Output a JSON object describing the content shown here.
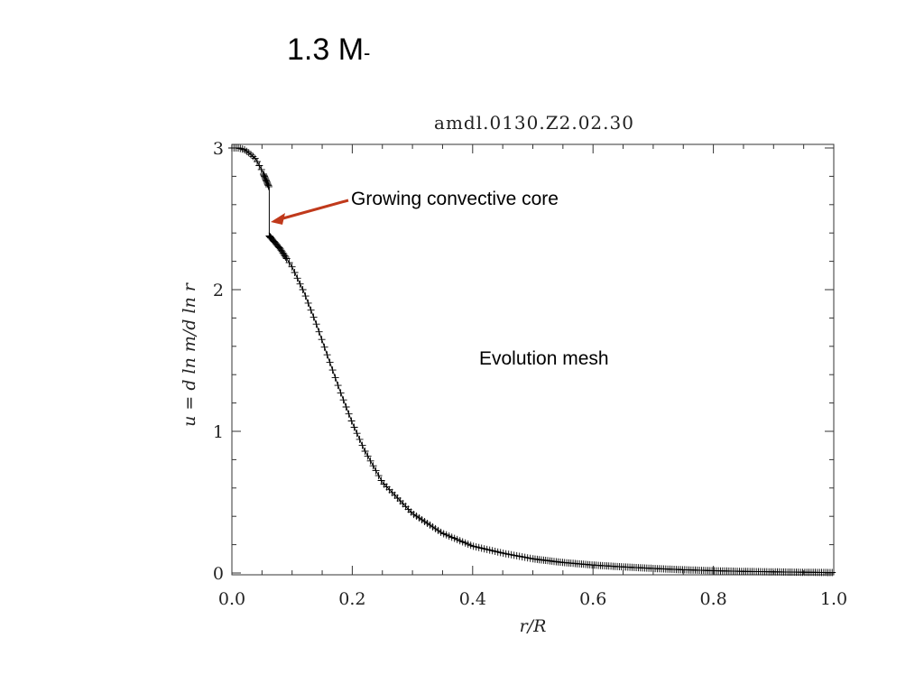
{
  "slide": {
    "title": "1.3 M",
    "title_suffix": "-"
  },
  "chart_data": {
    "type": "scatter",
    "title": "amdl.0130.Z2.02.30",
    "xlabel": "r/R",
    "ylabel": "u = d ln m/d ln r",
    "xlim": [
      0.0,
      1.0
    ],
    "ylim": [
      0,
      3
    ],
    "x_ticks": [
      "0.0",
      "0.2",
      "0.4",
      "0.6",
      "0.8",
      "1.0"
    ],
    "y_ticks": [
      "0",
      "1",
      "2",
      "3"
    ],
    "grid": false,
    "marker": "+",
    "series": [
      {
        "points": [
          [
            0.0,
            3.0
          ],
          [
            0.01,
            3.0
          ],
          [
            0.02,
            2.99
          ],
          [
            0.03,
            2.96
          ],
          [
            0.04,
            2.92
          ],
          [
            0.05,
            2.84
          ],
          [
            0.062,
            2.72
          ],
          [
            0.062,
            2.38
          ],
          [
            0.07,
            2.34
          ],
          [
            0.08,
            2.29
          ],
          [
            0.1,
            2.16
          ],
          [
            0.12,
            1.98
          ],
          [
            0.14,
            1.76
          ],
          [
            0.16,
            1.52
          ],
          [
            0.18,
            1.28
          ],
          [
            0.2,
            1.06
          ],
          [
            0.22,
            0.87
          ],
          [
            0.25,
            0.64
          ],
          [
            0.3,
            0.42
          ],
          [
            0.35,
            0.28
          ],
          [
            0.4,
            0.19
          ],
          [
            0.45,
            0.14
          ],
          [
            0.5,
            0.1
          ],
          [
            0.55,
            0.074
          ],
          [
            0.6,
            0.056
          ],
          [
            0.65,
            0.043
          ],
          [
            0.7,
            0.032
          ],
          [
            0.75,
            0.023
          ],
          [
            0.8,
            0.016
          ],
          [
            0.85,
            0.011
          ],
          [
            0.9,
            0.008
          ],
          [
            0.95,
            0.005
          ],
          [
            1.0,
            0.003
          ]
        ]
      }
    ]
  },
  "annotations": {
    "core": "Growing convective core",
    "mesh": "Evolution mesh"
  },
  "colors": {
    "arrow": "#c0391b",
    "curve": "#000000"
  }
}
